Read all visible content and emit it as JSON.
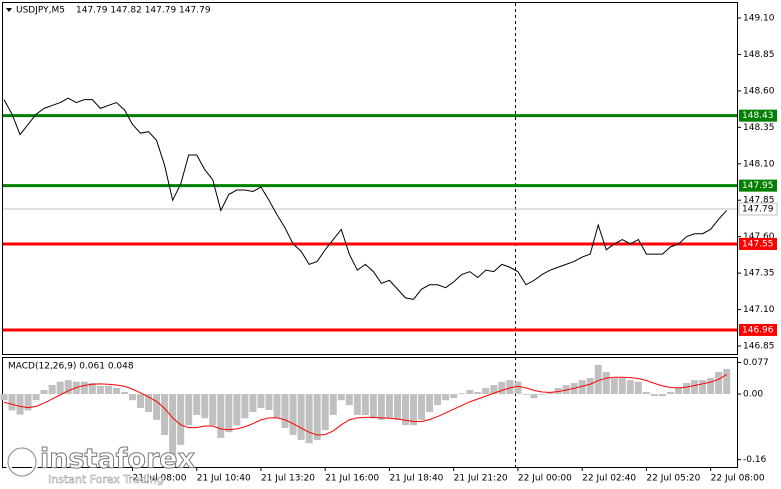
{
  "chart_data": [
    {
      "type": "line",
      "title": "USDJPY,M5",
      "subtitle": "147.79 147.82 147.79 147.79",
      "categories": [
        null,
        null,
        null,
        null,
        null,
        null,
        null,
        null,
        null,
        null,
        null,
        null,
        null,
        null,
        null,
        null,
        "21 Jul 08:00",
        null,
        null,
        null,
        null,
        null,
        null,
        null,
        "21 Jul 10:40",
        null,
        null,
        null,
        null,
        null,
        null,
        null,
        "21 Jul 13:20",
        null,
        null,
        null,
        null,
        null,
        null,
        null,
        "21 Jul 16:00",
        null,
        null,
        null,
        null,
        null,
        null,
        null,
        "21 Jul 18:40",
        null,
        null,
        null,
        null,
        null,
        null,
        null,
        "21 Jul 21:20",
        null,
        null,
        null,
        null,
        null,
        null,
        null,
        "22 Jul 00:00",
        null,
        null,
        null,
        null,
        null,
        null,
        null,
        "22 Jul 02:40",
        null,
        null,
        null,
        null,
        null,
        null,
        null,
        "22 Jul 05:20",
        null,
        null,
        null,
        null,
        null,
        null,
        null,
        "22 Jul 08:00",
        null,
        null
      ],
      "series": [
        {
          "color": "#000000",
          "values": [
            148.54,
            148.44,
            148.3,
            148.37,
            148.44,
            148.48,
            148.5,
            148.52,
            148.55,
            148.52,
            148.54,
            148.54,
            148.48,
            148.5,
            148.52,
            148.47,
            148.37,
            148.31,
            148.32,
            148.26,
            148.09,
            147.85,
            147.96,
            148.16,
            148.16,
            148.06,
            147.99,
            147.78,
            147.89,
            147.92,
            147.92,
            147.91,
            147.94,
            147.85,
            147.75,
            147.66,
            147.55,
            147.5,
            147.41,
            147.43,
            147.51,
            147.58,
            147.65,
            147.48,
            147.37,
            147.41,
            147.36,
            147.28,
            147.3,
            147.24,
            147.18,
            147.17,
            147.24,
            147.27,
            147.27,
            147.25,
            147.29,
            147.34,
            147.36,
            147.32,
            147.37,
            147.36,
            147.41,
            147.39,
            147.36,
            147.27,
            147.3,
            147.34,
            147.37,
            147.39,
            147.41,
            147.43,
            147.46,
            147.48,
            147.68,
            147.51,
            147.55,
            147.58,
            147.55,
            147.58,
            147.48,
            147.48,
            147.48,
            147.53,
            147.55,
            147.6,
            147.62,
            147.62,
            147.65,
            147.72,
            147.78
          ]
        }
      ],
      "levels": [
        {
          "value": 148.43,
          "color": "#008000"
        },
        {
          "value": 147.95,
          "color": "#008000"
        },
        {
          "value": 147.55,
          "color": "#ff0000"
        },
        {
          "value": 146.96,
          "color": "#ff0000"
        }
      ],
      "last_price": {
        "value": 147.79,
        "color": "#c0c0c0"
      },
      "ylim": [
        146.795,
        149.196
      ],
      "yticks": [
        {
          "value": 146.85,
          "label": "146.85"
        },
        {
          "value": 147.1,
          "label": "147.10"
        },
        {
          "value": 147.35,
          "label": "147.35"
        },
        {
          "value": 147.6,
          "label": "147.60"
        },
        {
          "value": 147.85,
          "label": "147.85"
        },
        {
          "value": 148.1,
          "label": "148.10"
        },
        {
          "value": 148.35,
          "label": "148.35"
        },
        {
          "value": 148.6,
          "label": "148.60"
        },
        {
          "value": 148.85,
          "label": "148.85"
        },
        {
          "value": 149.1,
          "label": "149.10"
        }
      ]
    },
    {
      "type": "macd",
      "title": "MACD(12,26,9) 0.061 0.048",
      "series": [
        {
          "color": "#c0c0c0",
          "values": [
            -0.015,
            -0.04,
            -0.05,
            -0.04,
            -0.015,
            0.01,
            0.022,
            0.03,
            0.034,
            0.03,
            0.03,
            0.027,
            0.02,
            0.02,
            0.015,
            0.005,
            -0.015,
            -0.034,
            -0.044,
            -0.063,
            -0.1,
            -0.149,
            -0.124,
            -0.076,
            -0.051,
            -0.059,
            -0.076,
            -0.107,
            -0.093,
            -0.076,
            -0.059,
            -0.044,
            -0.034,
            -0.039,
            -0.059,
            -0.083,
            -0.1,
            -0.112,
            -0.12,
            -0.112,
            -0.088,
            -0.051,
            -0.015,
            -0.027,
            -0.051,
            -0.051,
            -0.059,
            -0.063,
            -0.059,
            -0.063,
            -0.076,
            -0.076,
            -0.063,
            -0.044,
            -0.027,
            -0.015,
            -0.01,
            0.002,
            0.01,
            0.005,
            0.015,
            0.022,
            0.03,
            0.034,
            0.03,
            -0.002,
            -0.01,
            -0.002,
            0.005,
            0.015,
            0.022,
            0.027,
            0.034,
            0.039,
            0.071,
            0.054,
            0.039,
            0.039,
            0.034,
            0.03,
            0.005,
            -0.005,
            -0.005,
            0.005,
            0.015,
            0.027,
            0.034,
            0.034,
            0.039,
            0.054,
            0.061
          ]
        },
        {
          "color": "#ff0000",
          "values": [
            -0.02,
            -0.025,
            -0.03,
            -0.033,
            -0.03,
            -0.022,
            -0.012,
            -0.002,
            0.008,
            0.016,
            0.021,
            0.024,
            0.025,
            0.024,
            0.022,
            0.019,
            0.012,
            0.003,
            -0.007,
            -0.018,
            -0.035,
            -0.058,
            -0.075,
            -0.082,
            -0.082,
            -0.078,
            -0.078,
            -0.085,
            -0.087,
            -0.085,
            -0.08,
            -0.072,
            -0.063,
            -0.058,
            -0.058,
            -0.063,
            -0.072,
            -0.083,
            -0.093,
            -0.1,
            -0.099,
            -0.09,
            -0.075,
            -0.063,
            -0.058,
            -0.057,
            -0.057,
            -0.058,
            -0.059,
            -0.061,
            -0.064,
            -0.067,
            -0.067,
            -0.062,
            -0.055,
            -0.046,
            -0.037,
            -0.028,
            -0.019,
            -0.012,
            -0.005,
            0.002,
            0.009,
            0.015,
            0.019,
            0.015,
            0.009,
            0.005,
            0.004,
            0.006,
            0.01,
            0.014,
            0.019,
            0.024,
            0.033,
            0.039,
            0.041,
            0.041,
            0.04,
            0.038,
            0.033,
            0.026,
            0.02,
            0.016,
            0.015,
            0.017,
            0.021,
            0.025,
            0.029,
            0.036,
            0.048
          ]
        }
      ],
      "ylim": [
        -0.178,
        0.088
      ],
      "yticks": [
        {
          "value": -0.16,
          "label": "-0.16"
        },
        {
          "value": 0,
          "label": "0.00"
        },
        0.077
      ]
    }
  ],
  "watermark": {
    "brand": "instaforex",
    "tagline": "Instant Forex Trading"
  }
}
